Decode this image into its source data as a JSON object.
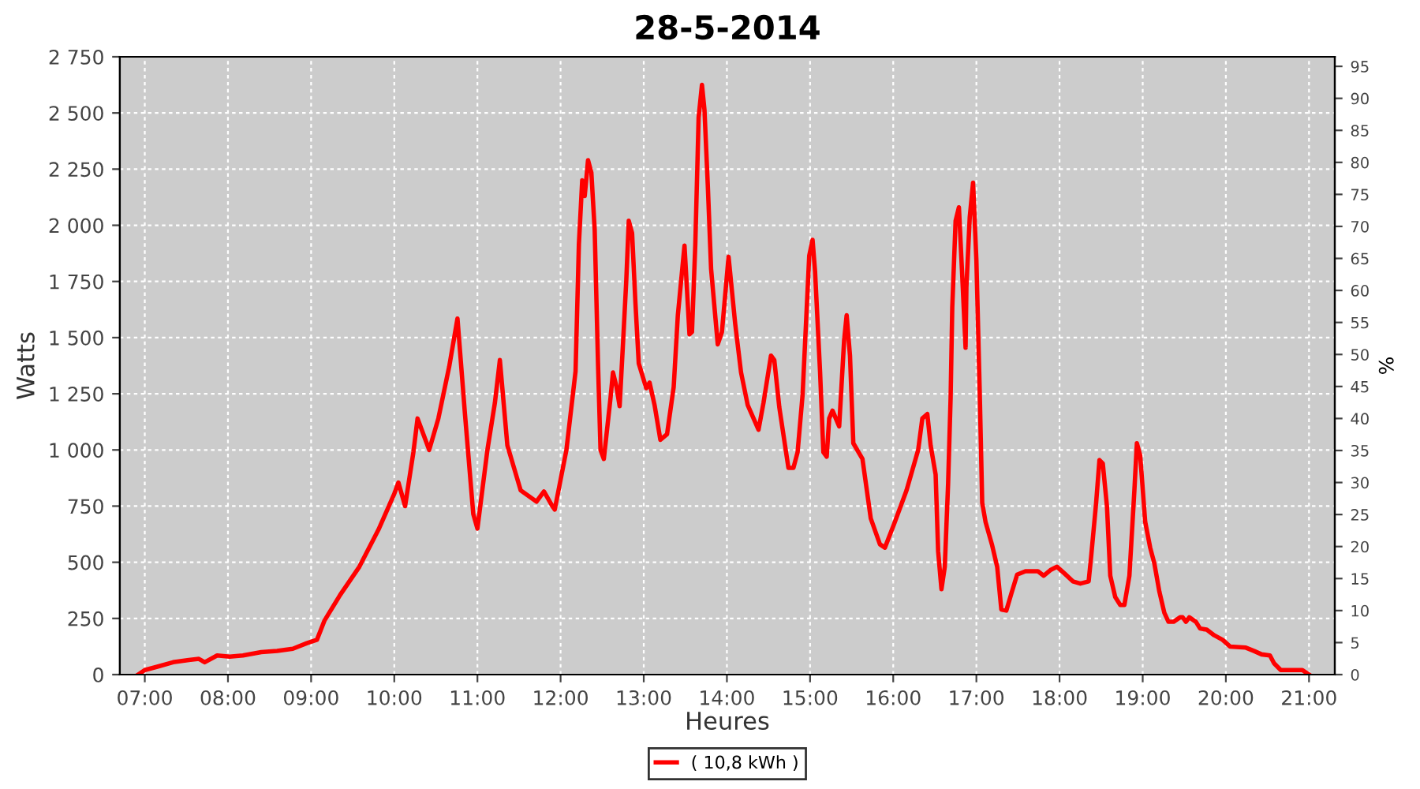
{
  "chart_data": {
    "type": "line",
    "title": "28-5-2014",
    "xlabel": "Heures",
    "ylabel": "Watts",
    "y2label": "%",
    "xlim": [
      6.7,
      21.31
    ],
    "xticks": [
      {
        "value": 7,
        "label": "07:00"
      },
      {
        "value": 8,
        "label": "08:00"
      },
      {
        "value": 9,
        "label": "09:00"
      },
      {
        "value": 10,
        "label": "10:00"
      },
      {
        "value": 11,
        "label": "11:00"
      },
      {
        "value": 12,
        "label": "12:00"
      },
      {
        "value": 13,
        "label": "13:00"
      },
      {
        "value": 14,
        "label": "14:00"
      },
      {
        "value": 15,
        "label": "15:00"
      },
      {
        "value": 16,
        "label": "16:00"
      },
      {
        "value": 17,
        "label": "17:00"
      },
      {
        "value": 18,
        "label": "18:00"
      },
      {
        "value": 19,
        "label": "19:00"
      },
      {
        "value": 20,
        "label": "20:00"
      },
      {
        "value": 21,
        "label": "21:00"
      }
    ],
    "ylim": [
      0,
      2750
    ],
    "yticks": [
      0,
      250,
      500,
      750,
      {
        "value": 1000,
        "label": "1 000"
      },
      {
        "value": 1250,
        "label": "1 250"
      },
      {
        "value": 1500,
        "label": "1 500"
      },
      {
        "value": 1750,
        "label": "1 750"
      },
      {
        "value": 2000,
        "label": "2 000"
      },
      {
        "value": 2250,
        "label": "2 250"
      },
      {
        "value": 2500,
        "label": "2 500"
      },
      {
        "value": 2750,
        "label": "2 750"
      }
    ],
    "y2lim": [
      0,
      96.49
    ],
    "y2ticks": [
      0,
      5,
      10,
      15,
      20,
      25,
      30,
      35,
      40,
      45,
      50,
      55,
      60,
      65,
      70,
      75,
      80,
      85,
      90,
      95
    ],
    "grid": true,
    "legend": "bottom",
    "line_style": "solid",
    "marker": "none",
    "series": [
      {
        "name": "( 10,8 kWh )",
        "color": "#ff0000",
        "x": [
          6.92,
          7.0,
          7.15,
          7.34,
          7.53,
          7.65,
          7.72,
          7.87,
          8.02,
          8.18,
          8.4,
          8.59,
          8.78,
          8.95,
          9.07,
          9.16,
          9.35,
          9.58,
          9.81,
          10.0,
          10.05,
          10.13,
          10.23,
          10.28,
          10.42,
          10.53,
          10.66,
          10.76,
          10.85,
          10.95,
          11.0,
          11.12,
          11.21,
          11.27,
          11.36,
          11.52,
          11.71,
          11.8,
          11.9,
          11.93,
          12.07,
          12.18,
          12.22,
          12.26,
          12.29,
          12.33,
          12.37,
          12.41,
          12.45,
          12.48,
          12.52,
          12.6,
          12.63,
          12.67,
          12.71,
          12.75,
          12.79,
          12.82,
          12.86,
          12.9,
          12.94,
          13.03,
          13.07,
          13.13,
          13.2,
          13.28,
          13.36,
          13.41,
          13.49,
          13.55,
          13.58,
          13.62,
          13.66,
          13.7,
          13.73,
          13.77,
          13.81,
          13.89,
          13.94,
          14.02,
          14.1,
          14.17,
          14.25,
          14.38,
          14.44,
          14.53,
          14.57,
          14.63,
          14.74,
          14.8,
          14.85,
          14.91,
          14.99,
          15.03,
          15.06,
          15.12,
          15.16,
          15.2,
          15.23,
          15.27,
          15.35,
          15.41,
          15.44,
          15.48,
          15.52,
          15.63,
          15.73,
          15.84,
          15.9,
          16.01,
          16.16,
          16.3,
          16.35,
          16.41,
          16.45,
          16.51,
          16.54,
          16.58,
          16.62,
          16.66,
          16.69,
          16.71,
          16.75,
          16.79,
          16.83,
          16.87,
          16.88,
          16.92,
          16.96,
          17.0,
          17.04,
          17.07,
          17.11,
          17.19,
          17.25,
          17.3,
          17.36,
          17.42,
          17.49,
          17.59,
          17.74,
          17.81,
          17.89,
          17.97,
          18.06,
          18.16,
          18.25,
          18.35,
          18.38,
          18.44,
          18.48,
          18.52,
          18.57,
          18.61,
          18.67,
          18.73,
          18.78,
          18.84,
          18.9,
          18.93,
          18.97,
          19.03,
          19.09,
          19.14,
          19.2,
          19.26,
          19.31,
          19.37,
          19.45,
          19.48,
          19.52,
          19.56,
          19.64,
          19.69,
          19.77,
          19.86,
          19.96,
          20.05,
          20.24,
          20.34,
          20.43,
          20.53,
          20.58,
          20.66,
          20.92,
          21.0
        ],
        "values": [
          0,
          20,
          35,
          55,
          65,
          70,
          55,
          85,
          80,
          85,
          100,
          105,
          115,
          140,
          155,
          240,
          355,
          480,
          645,
          805,
          855,
          750,
          990,
          1140,
          1000,
          1140,
          1370,
          1585,
          1160,
          715,
          650,
          1000,
          1210,
          1400,
          1020,
          820,
          770,
          815,
          750,
          735,
          1000,
          1350,
          1915,
          2200,
          2130,
          2290,
          2235,
          1980,
          1385,
          1000,
          960,
          1230,
          1345,
          1285,
          1195,
          1470,
          1755,
          2020,
          1965,
          1655,
          1385,
          1275,
          1300,
          1200,
          1045,
          1070,
          1280,
          1600,
          1910,
          1515,
          1525,
          1915,
          2480,
          2625,
          2515,
          2180,
          1805,
          1470,
          1525,
          1860,
          1560,
          1345,
          1200,
          1090,
          1210,
          1420,
          1400,
          1190,
          920,
          920,
          990,
          1245,
          1865,
          1935,
          1795,
          1350,
          990,
          970,
          1140,
          1175,
          1105,
          1490,
          1600,
          1420,
          1030,
          960,
          695,
          580,
          565,
          670,
          820,
          1000,
          1140,
          1160,
          1020,
          890,
          550,
          380,
          480,
          850,
          1230,
          1635,
          2020,
          2080,
          1775,
          1455,
          1725,
          2035,
          2190,
          1845,
          1260,
          765,
          680,
          575,
          480,
          290,
          285,
          360,
          445,
          460,
          460,
          440,
          465,
          480,
          450,
          415,
          405,
          415,
          525,
          765,
          955,
          940,
          750,
          440,
          345,
          310,
          310,
          440,
          820,
          1030,
          975,
          680,
          565,
          495,
          370,
          275,
          235,
          235,
          255,
          255,
          235,
          255,
          235,
          205,
          200,
          175,
          155,
          125,
          120,
          105,
          90,
          85,
          50,
          20,
          20,
          0
        ]
      }
    ]
  }
}
